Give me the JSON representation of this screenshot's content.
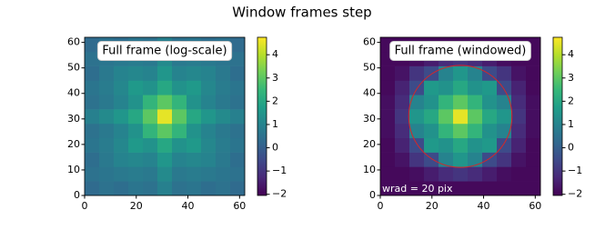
{
  "title": "Window frames step",
  "chart_data": [
    {
      "type": "heatmap",
      "label": "Full frame (log-scale)",
      "colormap": "viridis",
      "xlim": [
        0,
        62
      ],
      "ylim": [
        0,
        62
      ],
      "xticks": [
        0,
        20,
        40,
        60
      ],
      "yticks": [
        0,
        10,
        20,
        30,
        40,
        50,
        60
      ],
      "clim": [
        -2.05,
        4.75
      ],
      "cticks": [
        {
          "value": -2,
          "label": "−2"
        },
        {
          "value": -1,
          "label": "−1"
        },
        0,
        1,
        2,
        3,
        4
      ],
      "z": [
        [
          0.3,
          0.5,
          0.4,
          0.6,
          0.5,
          0.9,
          0.5,
          0.6,
          0.4,
          0.5,
          0.3
        ],
        [
          0.5,
          0.6,
          0.7,
          0.8,
          0.7,
          1.2,
          0.7,
          0.8,
          0.7,
          0.6,
          0.5
        ],
        [
          0.4,
          0.7,
          1.0,
          1.1,
          1.0,
          1.5,
          1.0,
          1.1,
          1.0,
          0.7,
          0.4
        ],
        [
          0.6,
          0.8,
          1.1,
          1.6,
          1.4,
          2.0,
          1.4,
          1.6,
          1.1,
          0.8,
          0.6
        ],
        [
          0.5,
          0.7,
          1.0,
          1.4,
          2.4,
          3.0,
          2.4,
          1.4,
          1.0,
          0.7,
          0.5
        ],
        [
          0.9,
          1.2,
          1.5,
          2.0,
          3.0,
          4.5,
          3.0,
          2.0,
          1.5,
          1.2,
          0.9
        ],
        [
          0.5,
          0.7,
          1.0,
          1.4,
          2.4,
          3.0,
          2.4,
          1.4,
          1.0,
          0.7,
          0.5
        ],
        [
          0.6,
          0.8,
          1.1,
          1.6,
          1.4,
          2.0,
          1.4,
          1.6,
          1.1,
          0.8,
          0.6
        ],
        [
          0.4,
          0.7,
          1.0,
          1.1,
          1.0,
          1.5,
          1.0,
          1.1,
          1.0,
          0.7,
          0.4
        ],
        [
          0.5,
          0.6,
          0.7,
          0.8,
          0.7,
          1.2,
          0.7,
          0.8,
          0.7,
          0.6,
          0.5
        ],
        [
          0.3,
          0.5,
          0.4,
          0.6,
          0.5,
          0.9,
          0.5,
          0.6,
          0.4,
          0.5,
          0.3
        ]
      ]
    },
    {
      "type": "heatmap",
      "label": "Full frame (windowed)",
      "colormap": "viridis",
      "annotation": "wrad = 20 pix",
      "circle": {
        "center": [
          31,
          31
        ],
        "radius": 20,
        "color": "#d62728"
      },
      "xlim": [
        0,
        62
      ],
      "ylim": [
        0,
        62
      ],
      "xticks": [
        0,
        20,
        40,
        60
      ],
      "yticks": [
        0,
        10,
        20,
        30,
        40,
        50,
        60
      ],
      "clim": [
        -2.05,
        4.75
      ],
      "cticks": [
        {
          "value": -2,
          "label": "−2"
        },
        {
          "value": -1,
          "label": "−1"
        },
        0,
        1,
        2,
        3,
        4
      ],
      "z": [
        [
          -1.9,
          -1.9,
          -1.9,
          -1.9,
          -1.9,
          -1.9,
          -1.9,
          -1.9,
          -1.9,
          -1.9,
          -1.9
        ],
        [
          -1.9,
          -1.9,
          -1.8,
          -1.5,
          -1.2,
          -1.0,
          -1.2,
          -1.5,
          -1.8,
          -1.9,
          -1.9
        ],
        [
          -1.9,
          -1.7,
          -1.0,
          -0.5,
          1.0,
          1.5,
          1.0,
          -0.5,
          -1.0,
          -1.7,
          -1.9
        ],
        [
          -1.9,
          -1.4,
          -0.5,
          1.6,
          1.4,
          2.0,
          1.4,
          1.6,
          -0.5,
          -1.4,
          -1.9
        ],
        [
          -1.8,
          -1.2,
          1.0,
          1.4,
          2.4,
          3.0,
          2.4,
          1.4,
          1.0,
          -1.2,
          -1.8
        ],
        [
          -1.8,
          -1.0,
          1.5,
          2.0,
          3.0,
          4.5,
          3.0,
          2.0,
          1.5,
          -1.0,
          -1.8
        ],
        [
          -1.8,
          -1.2,
          1.0,
          1.4,
          2.4,
          3.0,
          2.4,
          1.4,
          1.0,
          -1.2,
          -1.8
        ],
        [
          -1.9,
          -1.4,
          -0.5,
          1.6,
          1.4,
          2.0,
          1.4,
          1.6,
          -0.5,
          -1.4,
          -1.9
        ],
        [
          -1.9,
          -1.7,
          -1.0,
          -0.5,
          1.0,
          1.5,
          1.0,
          -0.5,
          -1.0,
          -1.7,
          -1.9
        ],
        [
          -1.9,
          -1.9,
          -1.8,
          -1.5,
          -1.2,
          -1.0,
          -1.2,
          -1.5,
          -1.8,
          -1.9,
          -1.9
        ],
        [
          -1.9,
          -1.9,
          -1.9,
          -1.9,
          -1.9,
          -1.9,
          -1.9,
          -1.9,
          -1.9,
          -1.9,
          -1.9
        ]
      ]
    }
  ]
}
